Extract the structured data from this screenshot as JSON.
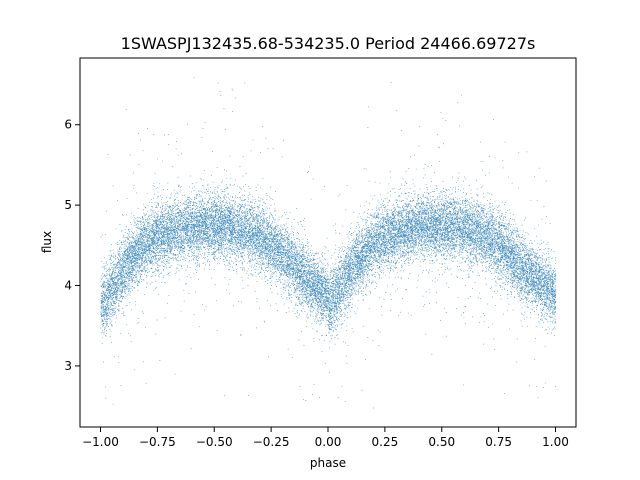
{
  "chart_data": {
    "type": "scatter",
    "title": "1SWASPJ132435.68-534235.0 Period 24466.69727s",
    "xlabel": "phase",
    "ylabel": "flux",
    "xlim": [
      -1.09,
      1.09
    ],
    "ylim": [
      2.24,
      6.83
    ],
    "x_ticks": [
      -1.0,
      -0.75,
      -0.5,
      -0.25,
      0.0,
      0.25,
      0.5,
      0.75,
      1.0
    ],
    "x_tick_labels": [
      "−1.00",
      "−0.75",
      "−0.50",
      "−0.25",
      "0.00",
      "0.25",
      "0.50",
      "0.75",
      "1.00"
    ],
    "y_ticks": [
      3,
      4,
      5,
      6
    ],
    "y_tick_labels": [
      "3",
      "4",
      "5",
      "6"
    ],
    "grid": false,
    "legend": "none",
    "point_color": "#1f77b4",
    "phase_fold": {
      "repeat_period": 1.0,
      "phase_range": [
        -1.0,
        1.0
      ],
      "light_curve": [
        {
          "phase": 0.0,
          "flux": 3.72
        },
        {
          "phase": 0.05,
          "flux": 3.97
        },
        {
          "phase": 0.1,
          "flux": 4.2
        },
        {
          "phase": 0.15,
          "flux": 4.38
        },
        {
          "phase": 0.2,
          "flux": 4.52
        },
        {
          "phase": 0.25,
          "flux": 4.6
        },
        {
          "phase": 0.3,
          "flux": 4.66
        },
        {
          "phase": 0.35,
          "flux": 4.7
        },
        {
          "phase": 0.4,
          "flux": 4.73
        },
        {
          "phase": 0.45,
          "flux": 4.74
        },
        {
          "phase": 0.5,
          "flux": 4.74
        },
        {
          "phase": 0.55,
          "flux": 4.73
        },
        {
          "phase": 0.6,
          "flux": 4.7
        },
        {
          "phase": 0.65,
          "flux": 4.66
        },
        {
          "phase": 0.7,
          "flux": 4.6
        },
        {
          "phase": 0.75,
          "flux": 4.5
        },
        {
          "phase": 0.8,
          "flux": 4.38
        },
        {
          "phase": 0.85,
          "flux": 4.24
        },
        {
          "phase": 0.9,
          "flux": 4.1
        },
        {
          "phase": 0.95,
          "flux": 3.98
        },
        {
          "phase": 1.0,
          "flux": 3.9
        }
      ],
      "scatter_sigma": 0.2,
      "outlier_flux_range": [
        2.45,
        6.6
      ],
      "n_points_per_cycle": 11000,
      "n_outliers_per_cycle": 450
    }
  }
}
